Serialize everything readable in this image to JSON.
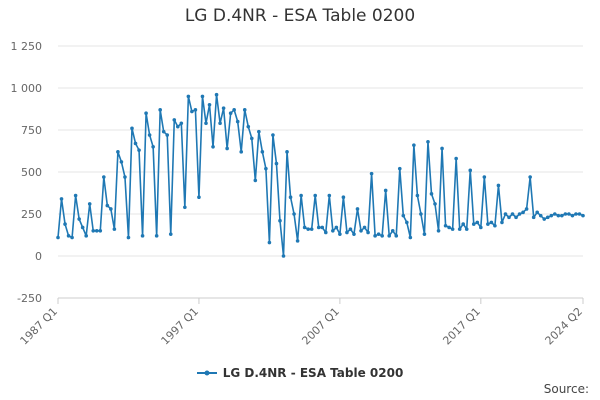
{
  "chart_data": {
    "type": "line",
    "title": "LG D.4NR - ESA Table 0200",
    "xlabel": "",
    "ylabel": "",
    "ylim": [
      -250,
      1250
    ],
    "y_ticks": [
      -250,
      0,
      250,
      500,
      750,
      1000,
      1250
    ],
    "y_tick_labels": [
      "-250",
      "0",
      "250",
      "500",
      "750",
      "1 000",
      "1 250"
    ],
    "x_tick_labels": [
      "1987 Q1",
      "1997 Q1",
      "2007 Q1",
      "2017 Q1",
      "2024 Q2"
    ],
    "x_tick_index": [
      0,
      40,
      80,
      120,
      149
    ],
    "grid": true,
    "legend_position": "bottom",
    "source_label": "Source:",
    "colors": {
      "series": "#1f78b4",
      "grid": "#e6e6e6",
      "axis": "#cccccc",
      "tick_text": "#666666"
    },
    "categories": [
      "1987 Q1",
      "1987 Q2",
      "1987 Q3",
      "1987 Q4",
      "1988 Q1",
      "1988 Q2",
      "1988 Q3",
      "1988 Q4",
      "1989 Q1",
      "1989 Q2",
      "1989 Q3",
      "1989 Q4",
      "1990 Q1",
      "1990 Q2",
      "1990 Q3",
      "1990 Q4",
      "1991 Q1",
      "1991 Q2",
      "1991 Q3",
      "1991 Q4",
      "1992 Q1",
      "1992 Q2",
      "1992 Q3",
      "1992 Q4",
      "1993 Q1",
      "1993 Q2",
      "1993 Q3",
      "1993 Q4",
      "1994 Q1",
      "1994 Q2",
      "1994 Q3",
      "1994 Q4",
      "1995 Q1",
      "1995 Q2",
      "1995 Q3",
      "1995 Q4",
      "1996 Q1",
      "1996 Q2",
      "1996 Q3",
      "1996 Q4",
      "1997 Q1",
      "1997 Q2",
      "1997 Q3",
      "1997 Q4",
      "1998 Q1",
      "1998 Q2",
      "1998 Q3",
      "1998 Q4",
      "1999 Q1",
      "1999 Q2",
      "1999 Q3",
      "1999 Q4",
      "2000 Q1",
      "2000 Q2",
      "2000 Q3",
      "2000 Q4",
      "2001 Q1",
      "2001 Q2",
      "2001 Q3",
      "2001 Q4",
      "2002 Q1",
      "2002 Q2",
      "2002 Q3",
      "2002 Q4",
      "2003 Q1",
      "2003 Q2",
      "2003 Q3",
      "2003 Q4",
      "2004 Q1",
      "2004 Q2",
      "2004 Q3",
      "2004 Q4",
      "2005 Q1",
      "2005 Q2",
      "2005 Q3",
      "2005 Q4",
      "2006 Q1",
      "2006 Q2",
      "2006 Q3",
      "2006 Q4",
      "2007 Q1",
      "2007 Q2",
      "2007 Q3",
      "2007 Q4",
      "2008 Q1",
      "2008 Q2",
      "2008 Q3",
      "2008 Q4",
      "2009 Q1",
      "2009 Q2",
      "2009 Q3",
      "2009 Q4",
      "2010 Q1",
      "2010 Q2",
      "2010 Q3",
      "2010 Q4",
      "2011 Q1",
      "2011 Q2",
      "2011 Q3",
      "2011 Q4",
      "2012 Q1",
      "2012 Q2",
      "2012 Q3",
      "2012 Q4",
      "2013 Q1",
      "2013 Q2",
      "2013 Q3",
      "2013 Q4",
      "2014 Q1",
      "2014 Q2",
      "2014 Q3",
      "2014 Q4",
      "2015 Q1",
      "2015 Q2",
      "2015 Q3",
      "2015 Q4",
      "2016 Q1",
      "2016 Q2",
      "2016 Q3",
      "2016 Q4",
      "2017 Q1",
      "2017 Q2",
      "2017 Q3",
      "2017 Q4",
      "2018 Q1",
      "2018 Q2",
      "2018 Q3",
      "2018 Q4",
      "2019 Q1",
      "2019 Q2",
      "2019 Q3",
      "2019 Q4",
      "2020 Q1",
      "2020 Q2",
      "2020 Q3",
      "2020 Q4",
      "2021 Q1",
      "2021 Q2",
      "2021 Q3",
      "2021 Q4",
      "2022 Q1",
      "2022 Q2",
      "2022 Q3",
      "2022 Q4",
      "2023 Q1",
      "2023 Q2",
      "2023 Q3",
      "2023 Q4",
      "2024 Q1",
      "2024 Q2"
    ],
    "series": [
      {
        "name": "LG D.4NR - ESA Table 0200",
        "values": [
          110,
          340,
          190,
          120,
          110,
          360,
          220,
          170,
          120,
          310,
          150,
          150,
          150,
          470,
          300,
          280,
          160,
          620,
          560,
          470,
          110,
          760,
          670,
          630,
          120,
          850,
          720,
          650,
          120,
          870,
          740,
          720,
          130,
          810,
          770,
          790,
          290,
          950,
          860,
          870,
          350,
          950,
          790,
          900,
          650,
          960,
          790,
          880,
          640,
          850,
          870,
          800,
          620,
          870,
          770,
          700,
          450,
          740,
          620,
          520,
          80,
          720,
          550,
          210,
          0,
          620,
          350,
          250,
          90,
          360,
          170,
          160,
          160,
          360,
          170,
          170,
          140,
          360,
          150,
          170,
          130,
          350,
          140,
          160,
          130,
          280,
          150,
          170,
          140,
          490,
          120,
          130,
          120,
          390,
          120,
          150,
          120,
          520,
          240,
          200,
          110,
          660,
          360,
          250,
          130,
          680,
          370,
          310,
          150,
          640,
          180,
          170,
          160,
          580,
          160,
          190,
          160,
          510,
          190,
          200,
          170,
          470,
          190,
          200,
          180,
          420,
          200,
          250,
          230,
          250,
          230,
          250,
          260,
          280,
          470,
          230,
          260,
          240,
          220,
          230,
          240,
          250,
          240,
          240,
          250,
          250,
          240,
          250,
          250,
          240
        ]
      }
    ]
  }
}
